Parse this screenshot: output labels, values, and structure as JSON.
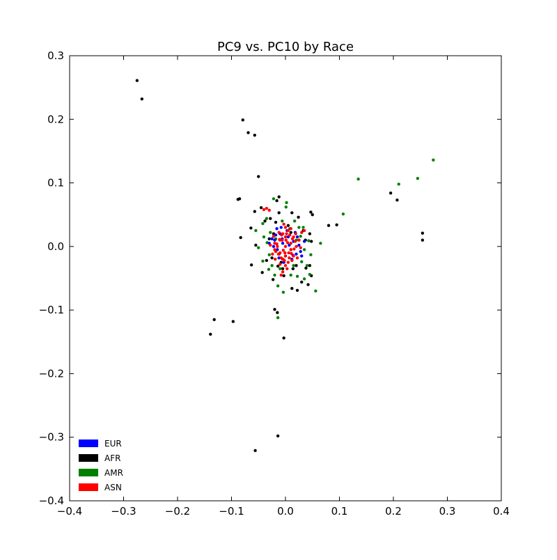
{
  "chart_data": {
    "type": "scatter",
    "title": "PC9 vs. PC10 by Race",
    "xlabel": "",
    "ylabel": "",
    "xlim": [
      -0.4,
      0.4
    ],
    "ylim": [
      -0.4,
      0.3
    ],
    "x_ticks": [
      {
        "value": -0.4,
        "label": "−0.4"
      },
      {
        "value": -0.3,
        "label": "−0.3"
      },
      {
        "value": -0.2,
        "label": "−0.2"
      },
      {
        "value": -0.1,
        "label": "−0.1"
      },
      {
        "value": 0.0,
        "label": "0.0"
      },
      {
        "value": 0.1,
        "label": "0.1"
      },
      {
        "value": 0.2,
        "label": "0.2"
      },
      {
        "value": 0.3,
        "label": "0.3"
      },
      {
        "value": 0.4,
        "label": "0.4"
      }
    ],
    "y_ticks": [
      {
        "value": 0.3,
        "label": "0.3"
      },
      {
        "value": 0.2,
        "label": "0.2"
      },
      {
        "value": 0.1,
        "label": "0.1"
      },
      {
        "value": 0.0,
        "label": "0.0"
      },
      {
        "value": -0.1,
        "label": "−0.1"
      },
      {
        "value": -0.2,
        "label": "−0.2"
      },
      {
        "value": -0.3,
        "label": "−0.3"
      },
      {
        "value": -0.4,
        "label": "−0.4"
      }
    ],
    "grid": false,
    "legend_position": "bottom-left",
    "series": [
      {
        "name": "AFR",
        "color": "#000000",
        "points": [
          [
            -0.275,
            0.261
          ],
          [
            -0.266,
            0.232
          ],
          [
            -0.079,
            0.199
          ],
          [
            -0.069,
            0.179
          ],
          [
            -0.057,
            0.175
          ],
          [
            -0.05,
            0.11
          ],
          [
            -0.085,
            0.075
          ],
          [
            -0.088,
            0.074
          ],
          [
            0.195,
            0.084
          ],
          [
            0.207,
            0.073
          ],
          [
            0.254,
            0.021
          ],
          [
            0.254,
            0.01
          ],
          [
            0.08,
            0.033
          ],
          [
            0.095,
            0.034
          ],
          [
            0.047,
            0.054
          ],
          [
            0.05,
            0.05
          ],
          [
            -0.083,
            0.014
          ],
          [
            -0.064,
            0.029
          ],
          [
            -0.057,
            0.055
          ],
          [
            -0.045,
            0.061
          ],
          [
            -0.012,
            0.078
          ],
          [
            -0.016,
            0.072
          ],
          [
            -0.012,
            0.053
          ],
          [
            -0.028,
            0.044
          ],
          [
            0.012,
            0.053
          ],
          [
            -0.038,
            0.04
          ],
          [
            -0.018,
            0.038
          ],
          [
            0.024,
            0.046
          ],
          [
            0.033,
            0.025
          ],
          [
            0.045,
            0.02
          ],
          [
            -0.055,
            0.002
          ],
          [
            -0.03,
            0.012
          ],
          [
            -0.025,
            -0.018
          ],
          [
            -0.043,
            -0.041
          ],
          [
            -0.063,
            -0.029
          ],
          [
            -0.035,
            -0.022
          ],
          [
            0.03,
            -0.056
          ],
          [
            0.012,
            -0.066
          ],
          [
            -0.003,
            -0.046
          ],
          [
            0.042,
            -0.06
          ],
          [
            0.048,
            -0.046
          ],
          [
            0.038,
            -0.034
          ],
          [
            0.022,
            -0.069
          ],
          [
            -0.023,
            -0.052
          ],
          [
            -0.014,
            -0.031
          ],
          [
            0.014,
            -0.035
          ],
          [
            0.045,
            -0.03
          ],
          [
            0.048,
            0.008
          ],
          [
            0.037,
            0.01
          ],
          [
            -0.02,
            -0.099
          ],
          [
            -0.015,
            -0.104
          ],
          [
            -0.097,
            -0.118
          ],
          [
            -0.132,
            -0.115
          ],
          [
            -0.139,
            -0.138
          ],
          [
            -0.003,
            -0.144
          ],
          [
            -0.014,
            -0.298
          ],
          [
            -0.056,
            -0.321
          ],
          [
            -0.008,
            -0.025
          ],
          [
            0.02,
            -0.03
          ],
          [
            0.005,
            0.033
          ],
          [
            -0.022,
            0.02
          ],
          [
            0.025,
            0.01
          ],
          [
            -0.012,
            -0.012
          ],
          [
            0.01,
            0.022
          ],
          [
            -0.005,
            -0.035
          ]
        ]
      },
      {
        "name": "AMR",
        "color": "#008000",
        "points": [
          [
            0.274,
            0.136
          ],
          [
            0.245,
            0.107
          ],
          [
            0.21,
            0.098
          ],
          [
            0.135,
            0.106
          ],
          [
            0.107,
            0.051
          ],
          [
            0.065,
            0.005
          ],
          [
            0.056,
            -0.07
          ],
          [
            0.047,
            -0.013
          ],
          [
            0.045,
            -0.044
          ],
          [
            0.035,
            -0.051
          ],
          [
            0.033,
            0.03
          ],
          [
            0.043,
            0.009
          ],
          [
            -0.004,
            -0.072
          ],
          [
            -0.014,
            -0.112
          ],
          [
            -0.014,
            -0.062
          ],
          [
            0.002,
            0.069
          ],
          [
            0.001,
            0.062
          ],
          [
            -0.022,
            0.075
          ],
          [
            -0.035,
            0.044
          ],
          [
            -0.042,
            0.036
          ],
          [
            -0.055,
            0.025
          ],
          [
            -0.05,
            -0.002
          ],
          [
            -0.042,
            -0.023
          ],
          [
            -0.031,
            -0.036
          ],
          [
            -0.02,
            -0.045
          ],
          [
            0.022,
            -0.047
          ],
          [
            0.03,
            -0.024
          ],
          [
            0.028,
            0.016
          ],
          [
            0.017,
            0.04
          ],
          [
            -0.006,
            0.04
          ],
          [
            -0.028,
            0.022
          ],
          [
            -0.034,
            0.006
          ],
          [
            -0.03,
            -0.013
          ],
          [
            -0.01,
            -0.035
          ],
          [
            0.015,
            -0.03
          ],
          [
            0.035,
            -0.005
          ],
          [
            0.02,
            0.01
          ],
          [
            -0.018,
            0.012
          ],
          [
            -0.005,
            -0.02
          ],
          [
            0.008,
            0.028
          ],
          [
            -0.04,
            0.015
          ],
          [
            0.04,
            -0.03
          ],
          [
            0.025,
            0.03
          ],
          [
            -0.025,
            -0.03
          ],
          [
            0.01,
            -0.045
          ]
        ]
      },
      {
        "name": "EUR",
        "color": "#0000ff",
        "points": [
          [
            -0.02,
            0.01
          ],
          [
            -0.015,
            -0.005
          ],
          [
            -0.01,
            0.02
          ],
          [
            -0.005,
            0.005
          ],
          [
            0.0,
            -0.015
          ],
          [
            0.005,
            0.015
          ],
          [
            0.01,
            -0.005
          ],
          [
            0.015,
            0.008
          ],
          [
            0.02,
            -0.012
          ],
          [
            -0.012,
            -0.018
          ],
          [
            -0.018,
            0.018
          ],
          [
            0.003,
            0.025
          ],
          [
            0.012,
            -0.02
          ],
          [
            0.025,
            0.002
          ],
          [
            -0.022,
            0.0
          ],
          [
            -0.008,
            0.03
          ],
          [
            0.018,
            0.022
          ],
          [
            -0.003,
            -0.025
          ],
          [
            0.028,
            -0.008
          ],
          [
            -0.025,
            0.012
          ],
          [
            0.007,
            0.002
          ],
          [
            -0.006,
            0.012
          ],
          [
            0.014,
            -0.014
          ],
          [
            0.022,
            0.015
          ],
          [
            -0.016,
            0.028
          ],
          [
            0.035,
            0.008
          ],
          [
            0.03,
            -0.015
          ],
          [
            -0.03,
            0.005
          ]
        ]
      },
      {
        "name": "ASN",
        "color": "#ff0000",
        "points": [
          [
            -0.04,
            0.058
          ],
          [
            -0.035,
            0.06
          ],
          [
            -0.03,
            0.057
          ],
          [
            0.035,
            0.025
          ],
          [
            0.03,
            0.022
          ],
          [
            -0.008,
            -0.045
          ],
          [
            -0.005,
            -0.04
          ],
          [
            -0.015,
            0.0
          ],
          [
            -0.01,
            0.01
          ],
          [
            -0.01,
            -0.01
          ],
          [
            -0.005,
            0.02
          ],
          [
            -0.005,
            -0.02
          ],
          [
            0.0,
            0.0
          ],
          [
            0.0,
            0.015
          ],
          [
            0.0,
            -0.015
          ],
          [
            0.005,
            0.025
          ],
          [
            0.005,
            -0.025
          ],
          [
            0.01,
            0.005
          ],
          [
            0.01,
            -0.005
          ],
          [
            0.015,
            0.015
          ],
          [
            0.015,
            -0.015
          ],
          [
            0.02,
            0.0
          ],
          [
            -0.02,
            0.005
          ],
          [
            -0.02,
            -0.005
          ],
          [
            0.0,
            0.03
          ],
          [
            0.0,
            -0.03
          ],
          [
            0.008,
            0.018
          ],
          [
            -0.008,
            -0.018
          ],
          [
            0.012,
            -0.022
          ],
          [
            -0.012,
            0.022
          ],
          [
            0.018,
            0.008
          ],
          [
            -0.018,
            -0.008
          ],
          [
            0.004,
            0.006
          ],
          [
            -0.004,
            -0.006
          ],
          [
            0.006,
            -0.01
          ],
          [
            -0.006,
            0.01
          ],
          [
            0.002,
            0.02
          ],
          [
            -0.002,
            -0.022
          ],
          [
            0.016,
            -0.004
          ],
          [
            -0.016,
            0.004
          ],
          [
            0.025,
            0.01
          ],
          [
            -0.024,
            -0.012
          ],
          [
            0.022,
            -0.018
          ],
          [
            -0.022,
            0.016
          ],
          [
            0.01,
            0.028
          ],
          [
            -0.01,
            -0.028
          ],
          [
            0.003,
            -0.035
          ],
          [
            -0.003,
            0.035
          ],
          [
            0.028,
            -0.002
          ],
          [
            -0.028,
            0.002
          ],
          [
            0.013,
            0.012
          ],
          [
            -0.013,
            -0.012
          ],
          [
            0.007,
            -0.018
          ],
          [
            -0.007,
            0.018
          ],
          [
            0.019,
            0.02
          ],
          [
            -0.019,
            -0.02
          ],
          [
            0.001,
            0.01
          ],
          [
            -0.001,
            -0.01
          ],
          [
            0.011,
            -0.011
          ],
          [
            -0.011,
            0.011
          ]
        ]
      }
    ],
    "legend": [
      {
        "label": "EUR",
        "color": "#0000ff"
      },
      {
        "label": "AFR",
        "color": "#000000"
      },
      {
        "label": "AMR",
        "color": "#008000"
      },
      {
        "label": "ASN",
        "color": "#ff0000"
      }
    ]
  }
}
